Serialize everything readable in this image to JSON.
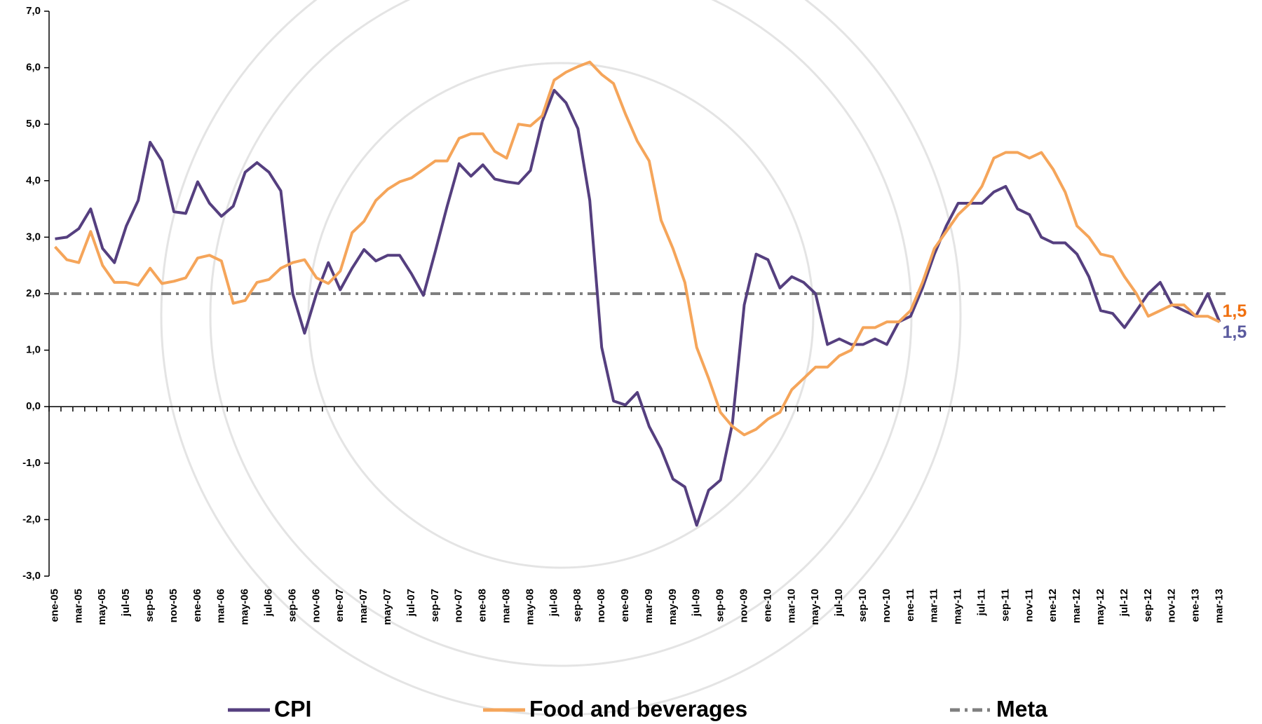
{
  "chart_data": {
    "type": "line",
    "categories": [
      "ene-05",
      null,
      "mar-05",
      null,
      "may-05",
      null,
      "jul-05",
      null,
      "sep-05",
      null,
      "nov-05",
      null,
      "ene-06",
      null,
      "mar-06",
      null,
      "may-06",
      null,
      "jul-06",
      null,
      "sep-06",
      null,
      "nov-06",
      null,
      "ene-07",
      null,
      "mar-07",
      null,
      "may-07",
      null,
      "jul-07",
      null,
      "sep-07",
      null,
      "nov-07",
      null,
      "ene-08",
      null,
      "mar-08",
      null,
      "may-08",
      null,
      "jul-08",
      null,
      "sep-08",
      null,
      "nov-08",
      null,
      "ene-09",
      null,
      "mar-09",
      null,
      "may-09",
      null,
      "jul-09",
      null,
      "sep-09",
      null,
      "nov-09",
      null,
      "ene-10",
      null,
      "mar-10",
      null,
      "may-10",
      null,
      "jul-10",
      null,
      "sep-10",
      null,
      "nov-10",
      null,
      "ene-11",
      null,
      "mar-11",
      null,
      "may-11",
      null,
      "jul-11",
      null,
      "sep-11",
      null,
      "nov-11",
      null,
      "ene-12",
      null,
      "mar-12",
      null,
      "may-12",
      null,
      "jul-12",
      null,
      "sep-12",
      null,
      "nov-12",
      null,
      "ene-13",
      null,
      "mar-13"
    ],
    "series": [
      {
        "name": "CPI",
        "color": "#553f7f",
        "label_color": "#5a5a9e",
        "values": [
          2.97,
          3.0,
          3.15,
          3.5,
          2.8,
          2.55,
          3.2,
          3.65,
          4.68,
          4.35,
          3.45,
          3.42,
          3.98,
          3.6,
          3.37,
          3.55,
          4.15,
          4.32,
          4.15,
          3.82,
          2.0,
          1.3,
          2.0,
          2.55,
          2.07,
          2.45,
          2.78,
          2.58,
          2.68,
          2.68,
          2.35,
          1.97,
          2.75,
          3.55,
          4.3,
          4.08,
          4.28,
          4.03,
          3.98,
          3.95,
          4.18,
          5.05,
          5.6,
          5.38,
          4.92,
          3.65,
          1.05,
          0.1,
          0.03,
          0.25,
          -0.35,
          -0.75,
          -1.28,
          -1.42,
          -2.1,
          -1.48,
          -1.3,
          -0.3,
          1.8,
          2.7,
          2.6,
          2.1,
          2.3,
          2.2,
          2.0,
          1.1,
          1.2,
          1.1,
          1.1,
          1.2,
          1.1,
          1.5,
          1.6,
          2.1,
          2.7,
          3.2,
          3.6,
          3.6,
          3.6,
          3.8,
          3.9,
          3.5,
          3.4,
          3.0,
          2.9,
          2.9,
          2.7,
          2.3,
          1.7,
          1.65,
          1.4,
          1.7,
          2.0,
          2.2,
          1.8,
          1.7,
          1.6,
          2.0,
          1.5
        ],
        "value_labels": [
          null,
          null,
          null,
          null,
          null,
          null,
          null,
          null,
          null,
          null,
          null,
          null,
          null,
          null,
          null,
          null,
          null,
          null,
          null,
          null,
          null,
          null,
          null,
          null,
          null,
          null,
          null,
          null,
          null,
          null,
          null,
          null,
          null,
          null,
          null,
          null,
          null,
          null,
          null,
          null,
          null,
          null,
          null,
          null,
          null,
          null,
          null,
          null,
          null,
          null,
          null,
          null,
          null,
          null,
          null,
          null,
          null,
          null,
          null,
          null,
          null,
          null,
          null,
          null,
          null,
          null,
          null,
          null,
          null,
          null,
          null,
          null,
          null,
          null,
          null,
          null,
          null,
          null,
          null,
          null,
          null,
          null,
          null,
          null,
          null,
          null,
          null,
          null,
          null,
          null,
          null,
          null,
          null,
          null,
          null,
          null,
          null,
          null,
          "1,5"
        ]
      },
      {
        "name": "Food and beverages",
        "color": "#f5a55a",
        "label_color": "#f07010",
        "values": [
          2.83,
          2.6,
          2.55,
          3.1,
          2.5,
          2.2,
          2.2,
          2.15,
          2.45,
          2.18,
          2.22,
          2.28,
          2.63,
          2.68,
          2.58,
          1.83,
          1.88,
          2.2,
          2.25,
          2.45,
          2.55,
          2.6,
          2.28,
          2.18,
          2.4,
          3.08,
          3.28,
          3.65,
          3.85,
          3.98,
          4.05,
          4.2,
          4.35,
          4.35,
          4.75,
          4.83,
          4.83,
          4.52,
          4.4,
          5.0,
          4.97,
          5.15,
          5.78,
          5.92,
          6.02,
          6.1,
          5.88,
          5.72,
          5.18,
          4.7,
          4.35,
          3.3,
          2.8,
          2.2,
          1.05,
          0.5,
          -0.1,
          -0.35,
          -0.5,
          -0.4,
          -0.22,
          -0.1,
          0.3,
          0.5,
          0.7,
          0.7,
          0.9,
          1.0,
          1.4,
          1.4,
          1.5,
          1.5,
          1.7,
          2.2,
          2.8,
          3.1,
          3.4,
          3.6,
          3.9,
          4.4,
          4.5,
          4.5,
          4.4,
          4.5,
          4.2,
          3.8,
          3.2,
          3.0,
          2.7,
          2.65,
          2.3,
          2.0,
          1.6,
          1.7,
          1.8,
          1.8,
          1.6,
          1.6,
          1.5
        ],
        "value_labels": [
          null,
          null,
          null,
          null,
          null,
          null,
          null,
          null,
          null,
          null,
          null,
          null,
          null,
          null,
          null,
          null,
          null,
          null,
          null,
          null,
          null,
          null,
          null,
          null,
          null,
          null,
          null,
          null,
          null,
          null,
          null,
          null,
          null,
          null,
          null,
          null,
          null,
          null,
          null,
          null,
          null,
          null,
          null,
          null,
          null,
          null,
          null,
          null,
          null,
          null,
          null,
          null,
          null,
          null,
          null,
          null,
          null,
          null,
          null,
          null,
          null,
          null,
          null,
          null,
          null,
          null,
          null,
          null,
          null,
          null,
          null,
          null,
          null,
          null,
          null,
          null,
          null,
          null,
          null,
          null,
          null,
          null,
          null,
          null,
          null,
          null,
          null,
          null,
          null,
          null,
          null,
          null,
          null,
          null,
          null,
          null,
          null,
          null,
          "1,5"
        ]
      }
    ],
    "reference_lines": [
      {
        "name": "Meta",
        "value": 2,
        "color": "#7f7f7f"
      }
    ],
    "ylim": [
      -3,
      7
    ],
    "yticks": [
      {
        "value": -3,
        "label": "-3,0"
      },
      {
        "value": -2,
        "label": "-2,0"
      },
      {
        "value": -1,
        "label": "-1,0"
      },
      {
        "value": 0,
        "label": "0,0"
      },
      {
        "value": 1,
        "label": "1,0"
      },
      {
        "value": 2,
        "label": "2,0"
      },
      {
        "value": 3,
        "label": "3,0"
      },
      {
        "value": 4,
        "label": "4,0"
      },
      {
        "value": 5,
        "label": "5,0"
      },
      {
        "value": 6,
        "label": "6,0"
      },
      {
        "value": 7,
        "label": "7,0"
      }
    ],
    "legend": "bottom"
  }
}
